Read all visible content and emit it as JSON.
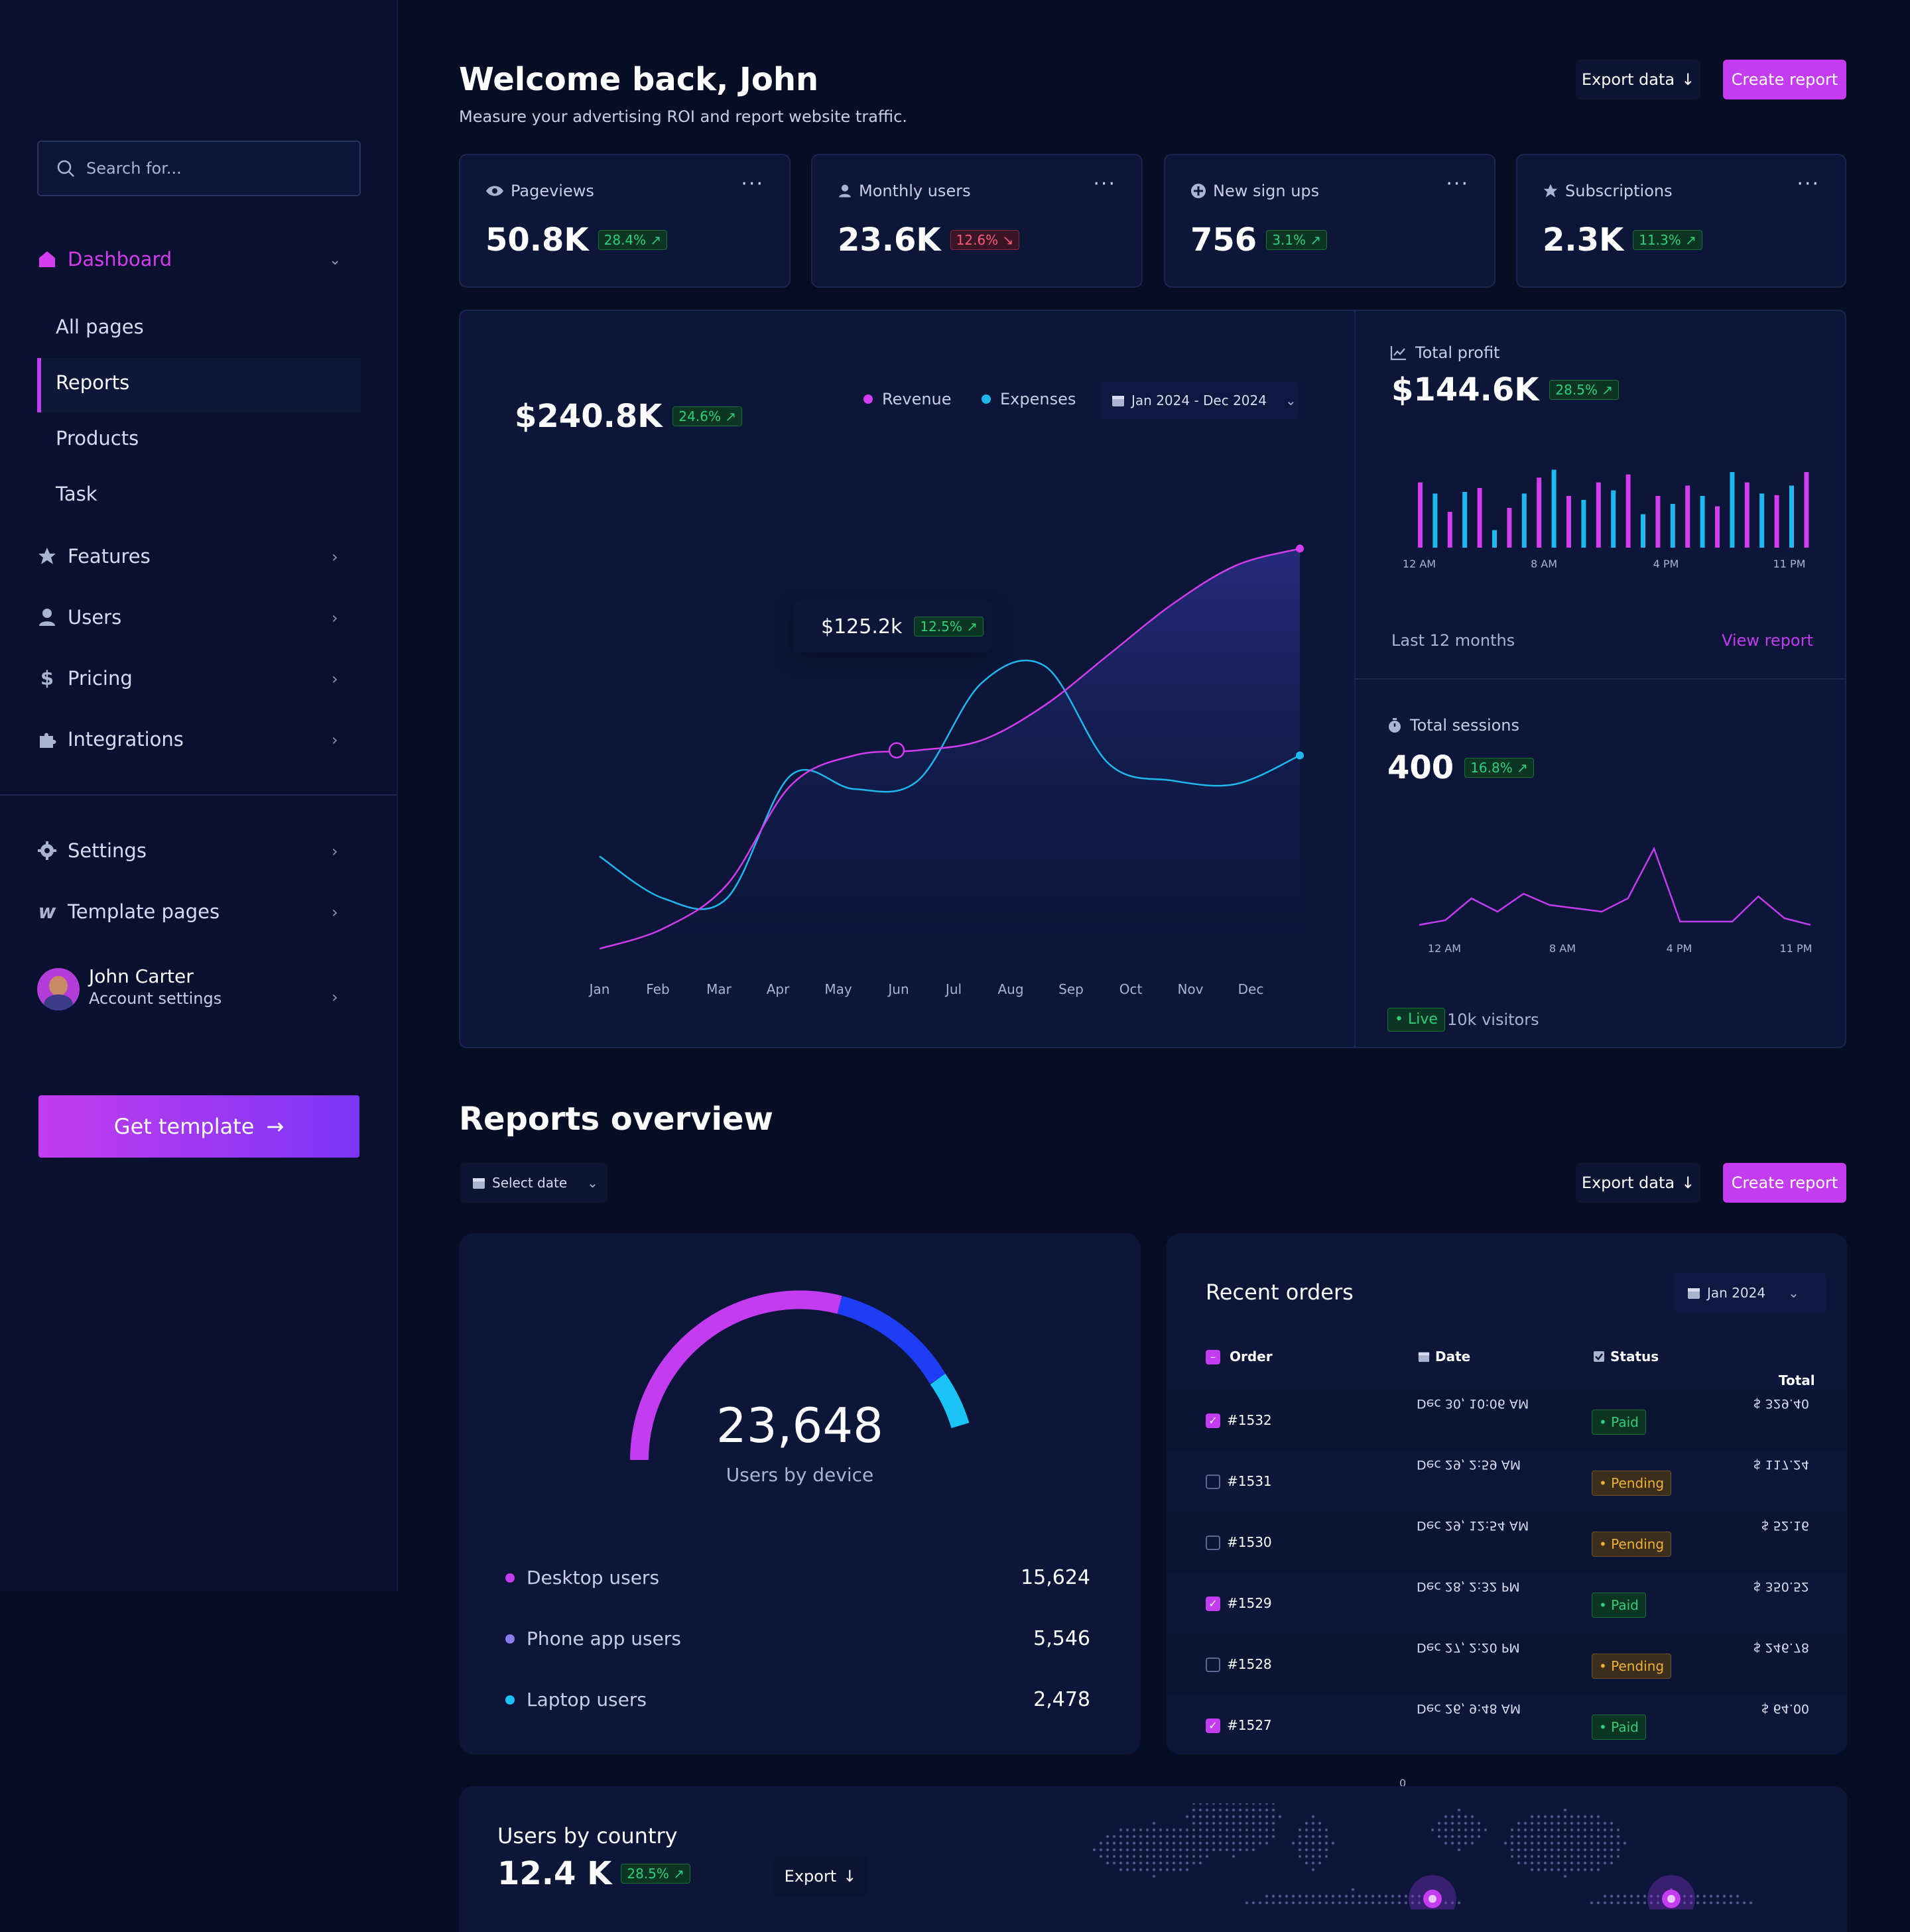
{
  "sidebar": {
    "search_placeholder": "Search for...",
    "dashboard_label": "Dashboard",
    "sub_items": [
      "All pages",
      "Reports",
      "Products",
      "Task"
    ],
    "items": [
      "Features",
      "Users",
      "Pricing",
      "Integrations"
    ],
    "bottom_items": [
      "Settings",
      "Template pages"
    ],
    "user_name": "John Carter",
    "user_sub": "Account settings",
    "cta": "Get template"
  },
  "header": {
    "title": "Welcome back, John",
    "subtitle": "Measure your advertising ROI and report website traffic.",
    "export_label": "Export data",
    "create_label": "Create report"
  },
  "stats": [
    {
      "label": "Pageviews",
      "value": "50.8K",
      "change": "28.4% ↗",
      "trend": "up"
    },
    {
      "label": "Monthly users",
      "value": "23.6K",
      "change": "12.6% ↘",
      "trend": "down"
    },
    {
      "label": "New sign ups",
      "value": "756",
      "change": "3.1% ↗",
      "trend": "up"
    },
    {
      "label": "Subscriptions",
      "value": "2.3K",
      "change": "11.3% ↗",
      "trend": "up"
    }
  ],
  "main_chart": {
    "total": "$240.8K",
    "change": "24.6% ↗",
    "legend_revenue": "Revenue",
    "legend_expenses": "Expenses",
    "date_range": "Jan 2024 - Dec 2024",
    "tooltip_value": "$125.2k",
    "tooltip_change": "12.5% ↗"
  },
  "profit": {
    "label": "Total profit",
    "value": "$144.6K",
    "change": "28.5% ↗",
    "ticks": [
      "12 AM",
      "8 AM",
      "4 PM",
      "11 PM"
    ],
    "footer": "Last 12 months",
    "link": "View report"
  },
  "sessions": {
    "label": "Total sessions",
    "value": "400",
    "change": "16.8% ↗",
    "ticks": [
      "12 AM",
      "8 AM",
      "4 PM",
      "11 PM"
    ],
    "live": "Live",
    "visitors": "10k visitors"
  },
  "reports": {
    "title": "Reports overview",
    "select_date": "Select date",
    "export_label": "Export data",
    "create_label": "Create report"
  },
  "device": {
    "total": "23,648",
    "caption": "Users by device",
    "rows": [
      {
        "label": "Desktop users",
        "value": "15,624"
      },
      {
        "label": "Phone app users",
        "value": "5,546"
      },
      {
        "label": "Laptop users",
        "value": "2,478"
      }
    ]
  },
  "orders": {
    "title": "Recent orders",
    "month": "Jan 2024",
    "headers": {
      "order": "Order",
      "date": "Date",
      "status": "Status",
      "total": "Total"
    },
    "rows": [
      {
        "order": "#1532",
        "date": "Dec 30, 10:06 AM",
        "status": "Paid",
        "total": "$ 329.40",
        "checked": true
      },
      {
        "order": "#1531",
        "date": "Dec 29, 2:59 AM",
        "status": "Pending",
        "total": "$ 117.24",
        "checked": false
      },
      {
        "order": "#1530",
        "date": "Dec 29, 12:54 AM",
        "status": "Pending",
        "total": "$ 52.16",
        "checked": false
      },
      {
        "order": "#1529",
        "date": "Dec 28, 2:32 PM",
        "status": "Paid",
        "total": "$ 350.52",
        "checked": true
      },
      {
        "order": "#1528",
        "date": "Dec 27, 2:20 PM",
        "status": "Pending",
        "total": "$ 246.78",
        "checked": false
      },
      {
        "order": "#1527",
        "date": "Dec 26, 9:48 AM",
        "status": "Paid",
        "total": "$ 64.00",
        "checked": true
      }
    ],
    "stray_label": "0"
  },
  "country": {
    "title": "Users by country",
    "value": "12.4 K",
    "change": "28.5% ↗",
    "export": "Export"
  },
  "chart_data": [
    {
      "type": "area",
      "categories": [
        "Jan",
        "Feb",
        "Mar",
        "Apr",
        "May",
        "Jun",
        "Jul",
        "Aug",
        "Sep",
        "Oct",
        "Nov",
        "Dec"
      ],
      "series": [
        {
          "name": "Revenue",
          "values": [
            0,
            12,
            38,
            97,
            115,
            118,
            124,
            145,
            175,
            205,
            228,
            238
          ]
        },
        {
          "name": "Expenses",
          "values": [
            55,
            30,
            30,
            103,
            95,
            100,
            158,
            168,
            110,
            100,
            98,
            115
          ]
        }
      ],
      "title": "",
      "xlabel": "",
      "ylabel": ""
    },
    {
      "type": "bar",
      "x_ticks": [
        "12 AM",
        "8 AM",
        "4 PM",
        "11 PM"
      ],
      "series": [
        {
          "name": "A",
          "values": [
            0.82,
            0.45,
            0.75,
            0.5,
            0.88,
            0.65,
            0.82,
            0.92,
            0.65,
            0.78,
            0.52,
            0.82,
            0.66,
            0.95
          ]
        },
        {
          "name": "B",
          "values": [
            0.68,
            0.7,
            0.22,
            0.68,
            0.98,
            0.6,
            0.72,
            0.42,
            0.55,
            0.65,
            0.95,
            0.68,
            0.78,
            0.95
          ]
        }
      ]
    },
    {
      "type": "line",
      "x_ticks": [
        "12 AM",
        "8 AM",
        "4 PM",
        "11 PM"
      ],
      "values": [
        5,
        12,
        45,
        25,
        52,
        35,
        30,
        25,
        45,
        120,
        10,
        10,
        10,
        48,
        15,
        5
      ]
    }
  ]
}
